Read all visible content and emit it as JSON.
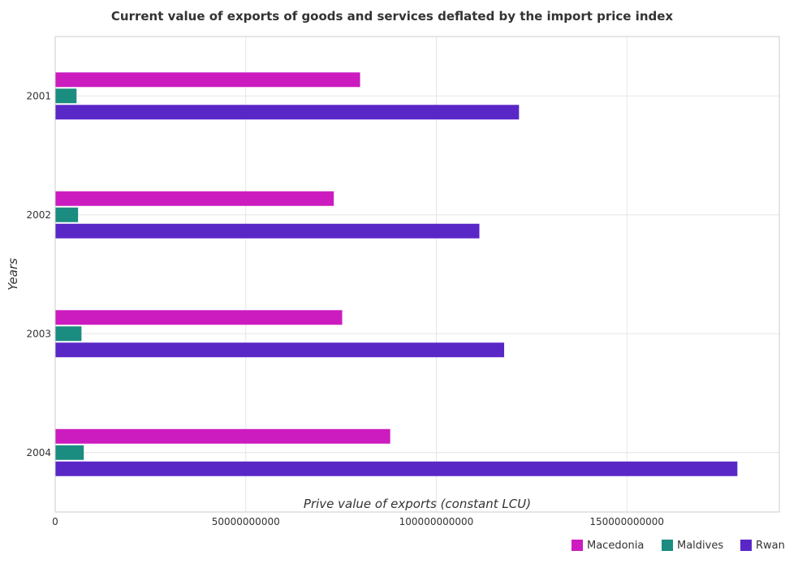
{
  "chart_data": {
    "type": "bar",
    "orientation": "horizontal",
    "title": "Current value of exports of goods and services deflated by the import price index",
    "xlabel": "Prive value of exports (constant LCU)",
    "ylabel": "Years",
    "categories": [
      "2001",
      "2002",
      "2003",
      "2004"
    ],
    "xlim": [
      0,
      190000000000
    ],
    "xticks": [
      0,
      50000000000,
      100000000000,
      150000000000
    ],
    "xtick_labels": [
      "0",
      "50000000000",
      "100000000000",
      "150000000000"
    ],
    "grid": true,
    "legend_position": "bottom-right",
    "series": [
      {
        "name": "Macedonia",
        "color": "#cc1cc0",
        "values": [
          80000000000,
          73100000000,
          75300000000,
          87900000000
        ]
      },
      {
        "name": "Maldives",
        "color": "#1a8c80",
        "values": [
          5600000000,
          6000000000,
          6900000000,
          7500000000
        ]
      },
      {
        "name": "Rwanda",
        "color": "#5a27c7",
        "values": [
          121700000000,
          111300000000,
          117800000000,
          179000000000
        ]
      }
    ]
  }
}
